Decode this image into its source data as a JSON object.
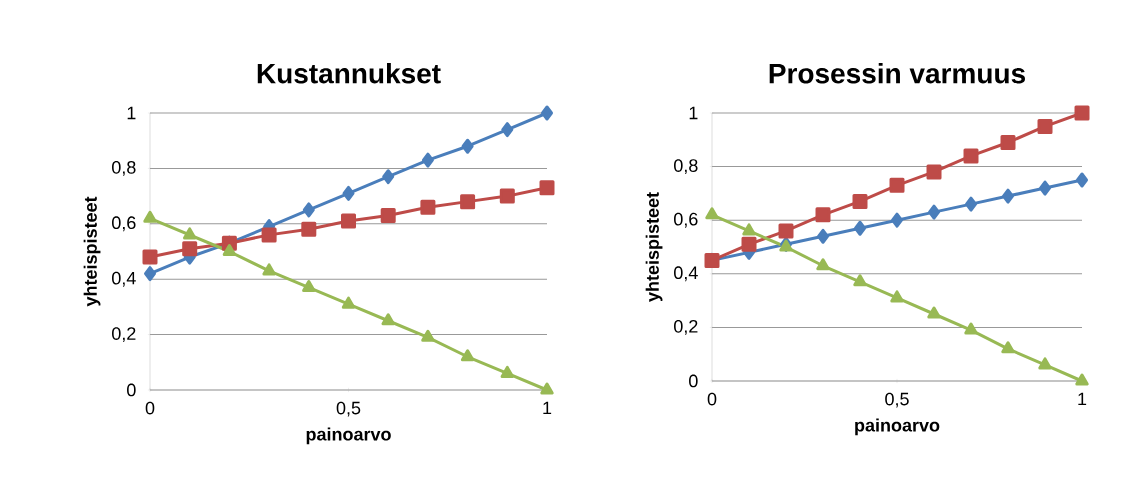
{
  "chart_data": [
    {
      "type": "line",
      "title": "Kustannukset",
      "xlabel": "painoarvo",
      "ylabel": "yhteispisteet",
      "x": [
        0,
        0.1,
        0.2,
        0.3,
        0.4,
        0.5,
        0.6,
        0.7,
        0.8,
        0.9,
        1
      ],
      "series": [
        {
          "color": "#4a7ebb",
          "marker": "diamond",
          "values": [
            0.42,
            0.48,
            0.53,
            0.59,
            0.65,
            0.71,
            0.77,
            0.83,
            0.88,
            0.94,
            1.0
          ]
        },
        {
          "color": "#be4b48",
          "marker": "square",
          "values": [
            0.48,
            0.51,
            0.53,
            0.56,
            0.58,
            0.61,
            0.63,
            0.66,
            0.68,
            0.7,
            0.73
          ]
        },
        {
          "color": "#98b954",
          "marker": "triangle",
          "values": [
            0.62,
            0.56,
            0.5,
            0.43,
            0.37,
            0.31,
            0.25,
            0.19,
            0.12,
            0.06,
            0.0
          ]
        }
      ],
      "xlim": [
        0,
        1
      ],
      "ylim": [
        0,
        1
      ],
      "xticks": [
        0,
        {
          "value": 0.5,
          "label": "0,5"
        },
        1
      ],
      "yticks": [
        0,
        {
          "value": 0.2,
          "label": "0,2"
        },
        {
          "value": 0.4,
          "label": "0,4"
        },
        {
          "value": 0.6,
          "label": "0,6"
        },
        {
          "value": 0.8,
          "label": "0,8"
        },
        1
      ],
      "grid": "y",
      "line_style": "solid"
    },
    {
      "type": "line",
      "title": "Prosessin varmuus",
      "xlabel": "painoarvo",
      "ylabel": "yhteispisteet",
      "x": [
        0,
        0.1,
        0.2,
        0.3,
        0.4,
        0.5,
        0.6,
        0.7,
        0.8,
        0.9,
        1
      ],
      "series": [
        {
          "color": "#4a7ebb",
          "marker": "diamond",
          "values": [
            0.45,
            0.48,
            0.51,
            0.54,
            0.57,
            0.6,
            0.63,
            0.66,
            0.69,
            0.72,
            0.75
          ]
        },
        {
          "color": "#be4b48",
          "marker": "square",
          "values": [
            0.45,
            0.51,
            0.56,
            0.62,
            0.67,
            0.73,
            0.78,
            0.84,
            0.89,
            0.95,
            1.0
          ]
        },
        {
          "color": "#98b954",
          "marker": "triangle",
          "values": [
            0.62,
            0.56,
            0.5,
            0.43,
            0.37,
            0.31,
            0.25,
            0.19,
            0.12,
            0.06,
            0.0
          ]
        }
      ],
      "xlim": [
        0,
        1
      ],
      "ylim": [
        0,
        1
      ],
      "xticks": [
        0,
        {
          "value": 0.5,
          "label": "0,5"
        },
        1
      ],
      "yticks": [
        0,
        {
          "value": 0.2,
          "label": "0,2"
        },
        {
          "value": 0.4,
          "label": "0,4"
        },
        {
          "value": 0.6,
          "label": "0,6"
        },
        {
          "value": 0.8,
          "label": "0,8"
        },
        1
      ],
      "grid": "y",
      "line_style": "solid"
    }
  ]
}
